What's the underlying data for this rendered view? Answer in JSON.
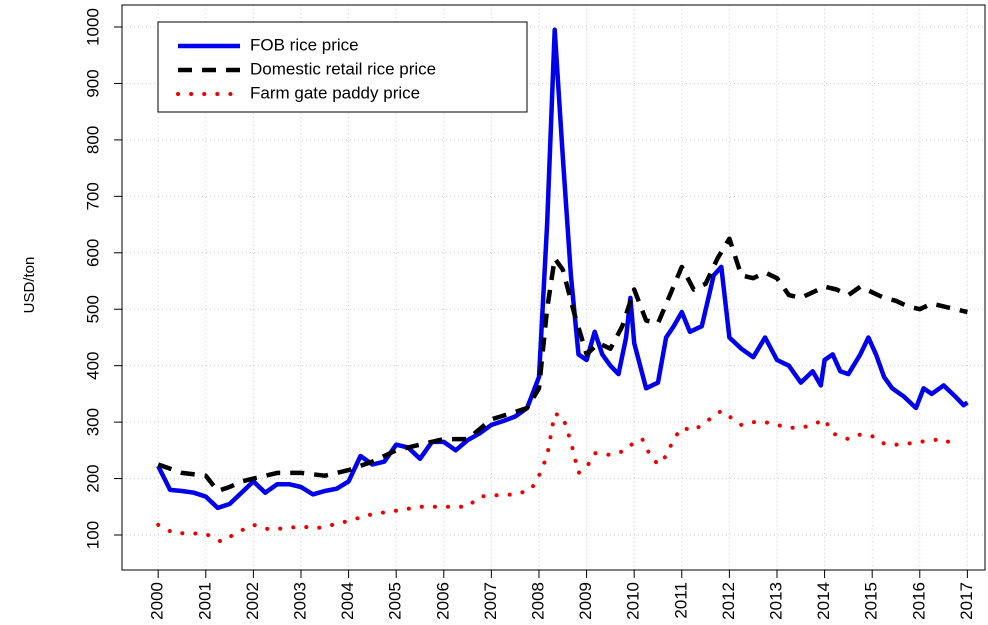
{
  "chart_data": {
    "type": "line",
    "ylabel": "USD/ton",
    "xlim": [
      1999.24,
      2017.37
    ],
    "ylim": [
      38,
      1039
    ],
    "xticks": [
      2000,
      2001,
      2002,
      2003,
      2004,
      2005,
      2006,
      2007,
      2008,
      2009,
      2010,
      2011,
      2012,
      2013,
      2014,
      2015,
      2016,
      2017
    ],
    "yticks": [
      100,
      200,
      300,
      400,
      500,
      600,
      700,
      800,
      900,
      1000
    ],
    "grid": true,
    "legend": "top-left",
    "series": [
      {
        "name": "FOB rice price",
        "color": "#0000ee",
        "line_style": "solid",
        "x": [
          2000,
          2000.25,
          2000.5,
          2000.75,
          2001,
          2001.25,
          2001.5,
          2001.75,
          2002,
          2002.25,
          2002.5,
          2002.75,
          2003,
          2003.25,
          2003.5,
          2003.75,
          2004,
          2004.25,
          2004.5,
          2004.75,
          2005,
          2005.25,
          2005.5,
          2005.75,
          2006,
          2006.25,
          2006.5,
          2006.75,
          2007,
          2007.25,
          2007.5,
          2007.75,
          2008,
          2008.17,
          2008.33,
          2008.5,
          2008.67,
          2008.83,
          2009,
          2009.17,
          2009.33,
          2009.5,
          2009.67,
          2009.83,
          2009.92,
          2010,
          2010.25,
          2010.5,
          2010.67,
          2010.83,
          2011,
          2011.17,
          2011.42,
          2011.67,
          2011.83,
          2012,
          2012.25,
          2012.5,
          2012.75,
          2013,
          2013.25,
          2013.5,
          2013.75,
          2013.92,
          2014,
          2014.17,
          2014.33,
          2014.5,
          2014.75,
          2014.92,
          2015.08,
          2015.25,
          2015.42,
          2015.67,
          2015.92,
          2016.08,
          2016.25,
          2016.5,
          2016.75,
          2016.92,
          2017
        ],
        "values": [
          222,
          180,
          178,
          175,
          168,
          148,
          155,
          175,
          195,
          175,
          190,
          190,
          185,
          172,
          178,
          182,
          195,
          240,
          225,
          230,
          260,
          255,
          235,
          265,
          265,
          250,
          268,
          280,
          295,
          302,
          310,
          325,
          380,
          650,
          995,
          770,
          560,
          420,
          410,
          460,
          420,
          400,
          385,
          450,
          520,
          440,
          360,
          370,
          450,
          470,
          495,
          460,
          470,
          560,
          575,
          450,
          430,
          415,
          450,
          410,
          400,
          370,
          390,
          365,
          410,
          420,
          390,
          385,
          420,
          450,
          420,
          380,
          360,
          345,
          325,
          360,
          350,
          365,
          345,
          330,
          335
        ]
      },
      {
        "name": "Domestic retail rice price",
        "color": "#000000",
        "line_style": "dashed",
        "x": [
          2000,
          2000.5,
          2001,
          2001.25,
          2001.5,
          2001.75,
          2002,
          2002.5,
          2003,
          2003.5,
          2004,
          2004.5,
          2005,
          2005.5,
          2006,
          2006.5,
          2007,
          2007.5,
          2007.75,
          2008,
          2008.17,
          2008.33,
          2008.5,
          2008.75,
          2009,
          2009.25,
          2009.5,
          2009.75,
          2010,
          2010.25,
          2010.5,
          2010.75,
          2011,
          2011.25,
          2011.5,
          2011.75,
          2012,
          2012.25,
          2012.5,
          2012.75,
          2013,
          2013.25,
          2013.5,
          2013.75,
          2014,
          2014.25,
          2014.5,
          2014.75,
          2015,
          2015.25,
          2015.5,
          2015.75,
          2016,
          2016.25,
          2016.5,
          2016.75,
          2017
        ],
        "values": [
          225,
          210,
          205,
          178,
          185,
          195,
          200,
          210,
          210,
          205,
          215,
          230,
          250,
          260,
          270,
          270,
          305,
          318,
          325,
          360,
          500,
          590,
          570,
          490,
          420,
          440,
          430,
          470,
          535,
          480,
          475,
          525,
          575,
          535,
          545,
          590,
          625,
          560,
          555,
          565,
          555,
          525,
          520,
          530,
          540,
          535,
          525,
          540,
          530,
          520,
          515,
          505,
          500,
          510,
          505,
          500,
          495
        ]
      },
      {
        "name": "Farm gate paddy price",
        "color": "#ee0000",
        "line_style": "dotted",
        "x": [
          2000,
          2000.33,
          2000.67,
          2001,
          2001.33,
          2001.67,
          2002,
          2002.33,
          2002.67,
          2003,
          2003.33,
          2003.67,
          2004,
          2004.5,
          2005,
          2005.5,
          2006,
          2006.5,
          2006.75,
          2007,
          2007.5,
          2007.83,
          2008,
          2008.17,
          2008.33,
          2008.5,
          2008.67,
          2008.83,
          2009,
          2009.17,
          2009.5,
          2009.83,
          2010,
          2010.17,
          2010.33,
          2010.5,
          2010.67,
          2010.83,
          2011,
          2011.25,
          2011.5,
          2011.83,
          2012,
          2012.25,
          2012.5,
          2012.75,
          2013,
          2013.25,
          2013.5,
          2013.75,
          2014,
          2014.17,
          2014.5,
          2014.75,
          2015,
          2015.25,
          2015.5,
          2015.75,
          2016,
          2016.25,
          2016.5,
          2016.75
        ],
        "values": [
          118,
          103,
          103,
          102,
          88,
          105,
          118,
          110,
          112,
          115,
          112,
          118,
          125,
          137,
          143,
          150,
          150,
          150,
          168,
          170,
          172,
          180,
          205,
          240,
          315,
          310,
          265,
          210,
          220,
          245,
          242,
          250,
          265,
          270,
          242,
          225,
          240,
          270,
          290,
          285,
          300,
          320,
          310,
          295,
          300,
          300,
          295,
          290,
          290,
          295,
          305,
          280,
          270,
          278,
          275,
          262,
          260,
          262,
          265,
          268,
          270,
          258
        ]
      }
    ]
  }
}
